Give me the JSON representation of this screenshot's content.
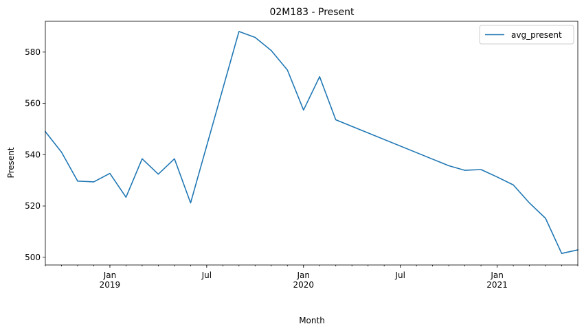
{
  "chart_data": {
    "type": "line",
    "title": "02M183 - Present",
    "xlabel": "Month",
    "ylabel": "Present",
    "ylim": [
      497,
      592
    ],
    "xlim": [
      "2018-09",
      "2021-06"
    ],
    "grid": false,
    "legend_position": "top-right",
    "x_ticks": [
      {
        "date": "2019-01",
        "label": "Jan",
        "sublabel": "2019"
      },
      {
        "date": "2019-07",
        "label": "Jul",
        "sublabel": ""
      },
      {
        "date": "2020-01",
        "label": "Jan",
        "sublabel": "2020"
      },
      {
        "date": "2020-07",
        "label": "Jul",
        "sublabel": ""
      },
      {
        "date": "2021-01",
        "label": "Jan",
        "sublabel": "2021"
      }
    ],
    "y_ticks": [
      500,
      520,
      540,
      560,
      580
    ],
    "series": [
      {
        "name": "avg_present",
        "color": "#1f77b4",
        "points": [
          {
            "x": "2018-09",
            "y": 549.0
          },
          {
            "x": "2018-10",
            "y": 541.0
          },
          {
            "x": "2018-11",
            "y": 529.7
          },
          {
            "x": "2018-12",
            "y": 529.4
          },
          {
            "x": "2019-01",
            "y": 532.7
          },
          {
            "x": "2019-02",
            "y": 523.4
          },
          {
            "x": "2019-03",
            "y": 538.4
          },
          {
            "x": "2019-04",
            "y": 532.4
          },
          {
            "x": "2019-05",
            "y": 538.4
          },
          {
            "x": "2019-06",
            "y": 521.2
          },
          {
            "x": "2019-09",
            "y": 588.0
          },
          {
            "x": "2019-10",
            "y": 585.7
          },
          {
            "x": "2019-11",
            "y": 580.6
          },
          {
            "x": "2019-12",
            "y": 573.0
          },
          {
            "x": "2020-01",
            "y": 557.4
          },
          {
            "x": "2020-02",
            "y": 570.4
          },
          {
            "x": "2020-03",
            "y": 553.6
          },
          {
            "x": "2020-10",
            "y": 535.7
          },
          {
            "x": "2020-11",
            "y": 533.9
          },
          {
            "x": "2020-12",
            "y": 534.2
          },
          {
            "x": "2021-01",
            "y": 531.3
          },
          {
            "x": "2021-02",
            "y": 528.2
          },
          {
            "x": "2021-03",
            "y": 521.2
          },
          {
            "x": "2021-04",
            "y": 515.2
          },
          {
            "x": "2021-05",
            "y": 501.5
          },
          {
            "x": "2021-06",
            "y": 502.9
          }
        ]
      }
    ]
  }
}
